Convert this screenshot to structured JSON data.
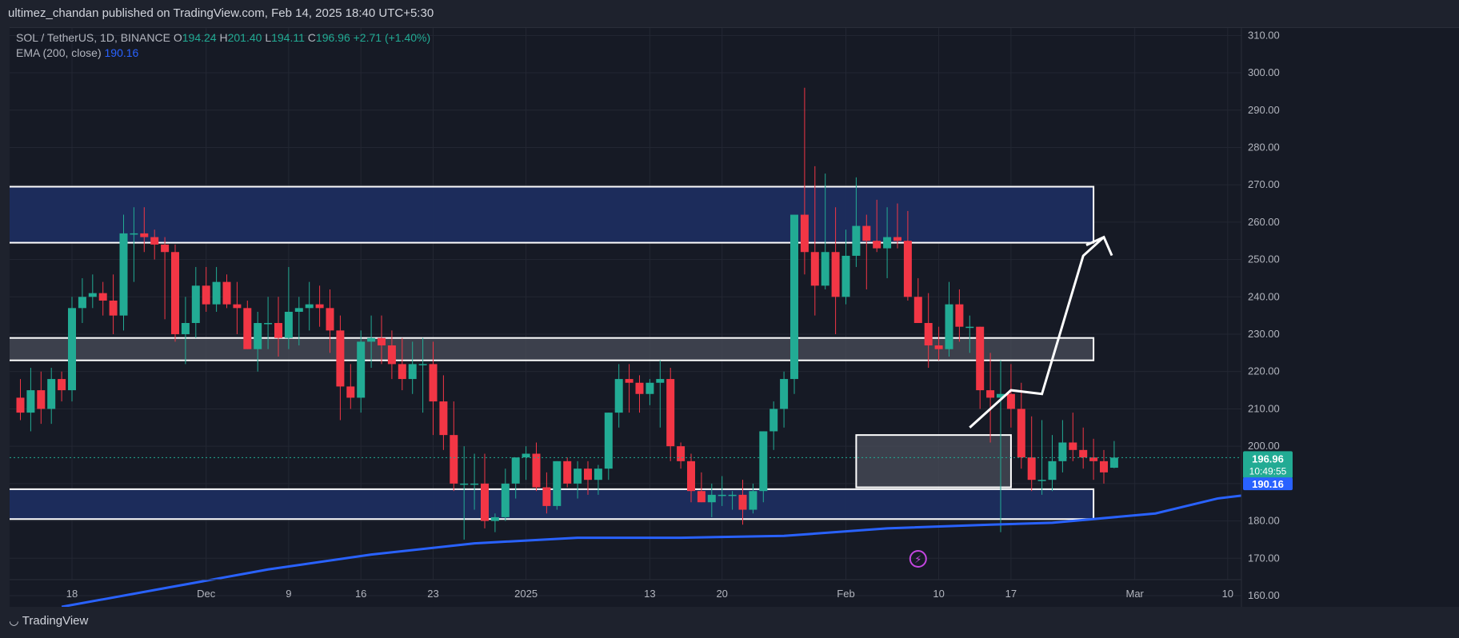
{
  "header": {
    "published_by": "ultimez_chandan published on TradingView.com, Feb 14, 2025 18:40 UTC+5:30"
  },
  "legend": {
    "symbol": "SOL / TetherUS, 1D, BINANCE",
    "o_label": "O",
    "o_val": "194.24",
    "h_label": "H",
    "h_val": "201.40",
    "l_label": "L",
    "l_val": "194.11",
    "c_label": "C",
    "c_val": "196.96",
    "change": "+2.71 (+1.40%)",
    "ema_label": "EMA (200, close)",
    "ema_val": "190.16"
  },
  "price_badges": {
    "last": "196.96",
    "countdown": "10:49:55",
    "ema": "190.16"
  },
  "footer": {
    "brand": "TradingView",
    "logo_icon": "tradingview-logo-icon"
  },
  "colors": {
    "up": "#22ab94",
    "down": "#f23645",
    "ema": "#2962ff",
    "zone": "#1c2d5e",
    "zone_gray": "#4a4e5a"
  },
  "chart_data": {
    "type": "candlestick",
    "symbol": "SOL / TetherUS",
    "interval": "1D",
    "exchange": "BINANCE",
    "ylim": [
      157,
      312
    ],
    "y_ticks": [
      "310.00",
      "300.00",
      "290.00",
      "280.00",
      "270.00",
      "260.00",
      "250.00",
      "240.00",
      "230.00",
      "220.00",
      "210.00",
      "200.00",
      "190.00",
      "180.00",
      "170.00",
      "160.00"
    ],
    "y_tick_values": [
      310,
      300,
      290,
      280,
      270,
      260,
      250,
      240,
      230,
      220,
      210,
      200,
      190,
      180,
      170,
      160
    ],
    "x_ticks": [
      {
        "label": "18",
        "day": 0
      },
      {
        "label": "Dec",
        "day": 13
      },
      {
        "label": "9",
        "day": 21
      },
      {
        "label": "16",
        "day": 28
      },
      {
        "label": "23",
        "day": 35
      },
      {
        "label": "2025",
        "day": 44
      },
      {
        "label": "13",
        "day": 56
      },
      {
        "label": "20",
        "day": 63
      },
      {
        "label": "Feb",
        "day": 75
      },
      {
        "label": "10",
        "day": 84
      },
      {
        "label": "17",
        "day": 91
      },
      {
        "label": "Mar",
        "day": 103
      },
      {
        "label": "10",
        "day": 112
      }
    ],
    "day_origin_label": "18",
    "candles": [
      [
        213,
        218,
        207,
        209
      ],
      [
        209,
        221,
        204,
        215
      ],
      [
        215,
        220,
        206,
        210
      ],
      [
        210,
        221,
        206,
        218
      ],
      [
        218,
        220,
        212,
        215
      ],
      [
        215,
        240,
        212,
        237
      ],
      [
        237,
        245,
        233,
        240
      ],
      [
        240,
        246,
        237,
        241
      ],
      [
        241,
        244,
        235,
        239
      ],
      [
        239,
        246,
        230,
        235
      ],
      [
        235,
        262,
        231,
        257
      ],
      [
        257,
        264,
        244,
        257
      ],
      [
        257,
        264,
        252,
        256
      ],
      [
        256,
        258,
        250,
        254
      ],
      [
        254,
        256,
        234,
        252
      ],
      [
        252,
        254,
        228,
        230
      ],
      [
        230,
        240,
        222,
        233
      ],
      [
        233,
        248,
        229,
        243
      ],
      [
        243,
        248,
        236,
        238
      ],
      [
        238,
        248,
        236,
        244
      ],
      [
        244,
        246,
        237,
        238
      ],
      [
        238,
        244,
        230,
        237
      ],
      [
        237,
        239,
        226,
        226
      ],
      [
        226,
        236,
        220,
        233
      ],
      [
        233,
        240,
        226,
        233
      ],
      [
        233,
        240,
        224,
        229
      ],
      [
        229,
        248,
        226,
        236
      ],
      [
        236,
        240,
        227,
        237
      ],
      [
        237,
        244,
        231,
        238
      ],
      [
        238,
        243,
        232,
        237
      ],
      [
        237,
        242,
        225,
        231
      ],
      [
        231,
        235,
        207,
        216
      ],
      [
        216,
        222,
        210,
        213
      ],
      [
        213,
        231,
        209,
        228
      ],
      [
        228,
        235,
        221,
        229
      ],
      [
        229,
        235,
        222,
        227
      ],
      [
        227,
        231,
        218,
        222
      ],
      [
        222,
        229,
        215,
        218
      ],
      [
        218,
        228,
        214,
        222
      ],
      [
        222,
        229,
        209,
        222
      ],
      [
        222,
        228,
        203,
        212
      ],
      [
        212,
        219,
        199,
        203
      ],
      [
        203,
        212,
        188,
        190
      ],
      [
        190,
        200,
        175,
        190
      ],
      [
        190,
        198,
        183,
        190
      ],
      [
        190,
        198,
        178,
        180
      ],
      [
        180,
        182,
        177,
        181
      ],
      [
        181,
        194,
        180,
        190
      ],
      [
        190,
        197,
        186,
        197
      ],
      [
        197,
        200,
        191,
        198
      ],
      [
        198,
        201,
        188,
        189
      ],
      [
        189,
        193,
        182,
        184
      ],
      [
        184,
        196,
        183,
        196
      ],
      [
        196,
        197,
        189,
        190
      ],
      [
        190,
        196,
        186,
        194
      ],
      [
        194,
        196,
        187,
        191
      ],
      [
        191,
        195,
        187,
        194
      ],
      [
        194,
        209,
        191,
        209
      ],
      [
        209,
        222,
        205,
        218
      ],
      [
        218,
        222,
        209,
        217
      ],
      [
        217,
        219,
        209,
        214
      ],
      [
        214,
        218,
        211,
        217
      ],
      [
        217,
        223,
        205,
        218
      ],
      [
        218,
        221,
        196,
        200
      ],
      [
        200,
        201,
        194,
        196
      ],
      [
        196,
        198,
        185,
        188
      ],
      [
        188,
        193,
        185,
        185
      ],
      [
        185,
        190,
        181,
        187
      ],
      [
        187,
        192,
        184,
        187
      ],
      [
        187,
        188,
        183,
        187
      ],
      [
        187,
        191,
        179,
        183
      ],
      [
        183,
        190,
        182,
        188
      ],
      [
        188,
        204,
        185,
        204
      ],
      [
        204,
        212,
        199,
        210
      ],
      [
        210,
        220,
        205,
        218
      ],
      [
        218,
        262,
        214,
        262
      ],
      [
        262,
        296,
        246,
        252
      ],
      [
        252,
        275,
        235,
        243
      ],
      [
        243,
        273,
        242,
        252
      ],
      [
        252,
        264,
        230,
        240
      ],
      [
        240,
        258,
        238,
        251
      ],
      [
        251,
        272,
        248,
        259
      ],
      [
        259,
        262,
        242,
        255
      ],
      [
        255,
        266,
        252,
        253
      ],
      [
        253,
        264,
        245,
        256
      ],
      [
        256,
        265,
        253,
        255
      ],
      [
        255,
        263,
        239,
        240
      ],
      [
        240,
        245,
        233,
        233
      ],
      [
        233,
        241,
        221,
        227
      ],
      [
        227,
        232,
        223,
        226
      ],
      [
        226,
        244,
        224,
        238
      ],
      [
        238,
        242,
        228,
        232
      ],
      [
        232,
        235,
        225,
        232
      ]
    ],
    "candles_feb": [
      [
        232,
        232,
        210,
        215
      ],
      [
        215,
        225,
        201,
        213
      ],
      [
        213,
        223,
        177,
        214
      ],
      [
        214,
        222,
        205,
        210
      ],
      [
        210,
        217,
        194,
        197
      ],
      [
        197,
        208,
        188,
        191
      ],
      [
        191,
        207,
        187,
        191
      ],
      [
        191,
        203,
        188,
        196
      ],
      [
        196,
        207,
        193,
        201
      ],
      [
        201,
        209,
        196,
        199
      ],
      [
        199,
        205,
        194,
        197
      ],
      [
        197,
        202,
        191,
        196
      ],
      [
        196,
        199,
        190,
        193
      ],
      [
        194.24,
        201.4,
        194.11,
        196.96
      ]
    ],
    "ema": [
      [
        4,
        157
      ],
      [
        14,
        162
      ],
      [
        24,
        167
      ],
      [
        34,
        171
      ],
      [
        44,
        174
      ],
      [
        54,
        175.5
      ],
      [
        64,
        175.5
      ],
      [
        74,
        176
      ],
      [
        84,
        178
      ],
      [
        94,
        179
      ],
      [
        100,
        179.5
      ],
      [
        110,
        182
      ],
      [
        116,
        186
      ],
      [
        122,
        188
      ],
      [
        127,
        189
      ],
      [
        133,
        189.5
      ],
      [
        137,
        190.16
      ]
    ],
    "zones": [
      {
        "top": 269.5,
        "bottom": 254.5,
        "start_day": -10,
        "end_day": 99,
        "style": "blue"
      },
      {
        "top": 229,
        "bottom": 223,
        "start_day": -10,
        "end_day": 99,
        "style": "gray"
      },
      {
        "top": 188.5,
        "bottom": 180.5,
        "start_day": -10,
        "end_day": 99,
        "style": "blue"
      },
      {
        "top": 203,
        "bottom": 189,
        "start_day": 76,
        "end_day": 91,
        "style": "gray"
      }
    ],
    "projection": [
      [
        87,
        205
      ],
      [
        91,
        215
      ],
      [
        94,
        214
      ],
      [
        98,
        251
      ],
      [
        100,
        256
      ]
    ],
    "last_price": 196.96,
    "grid": true,
    "legend_position": "top-left"
  }
}
